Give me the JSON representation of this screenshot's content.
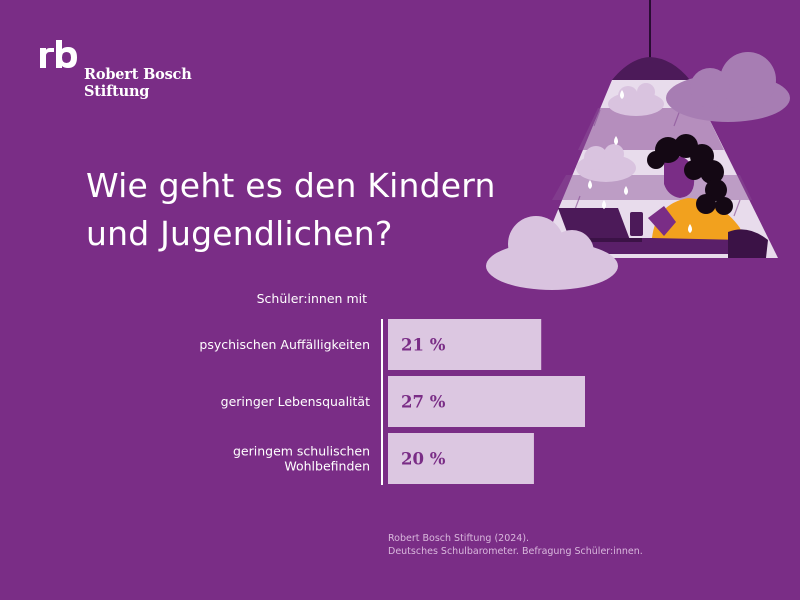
{
  "brand": {
    "name_line1": "Robert Bosch",
    "name_line2": "Stiftung"
  },
  "headline": {
    "line1": "Wie geht es den Kindern",
    "line2": "und Jugendlichen?"
  },
  "colors": {
    "background": "#7a2d86",
    "bar_fill": "#dcc7e1",
    "bar_text": "#7a2d86",
    "cloud": "#d9c3df",
    "cloud_dark": "#a77db3",
    "person_shirt": "#f2a11e"
  },
  "chart_data": {
    "type": "bar",
    "orientation": "horizontal",
    "title": "Schüler:innen mit",
    "categories": [
      [
        "psychischen Auffälligkeiten"
      ],
      [
        "geringer Lebensqualität"
      ],
      [
        "geringem schulischen",
        "Wohlbefinden"
      ]
    ],
    "values": [
      21,
      27,
      20
    ],
    "value_labels": [
      "21 %",
      "27 %",
      "20 %"
    ],
    "unit": "%",
    "xlim": [
      0,
      27
    ]
  },
  "source": {
    "line1": "Robert Bosch Stiftung (2024).",
    "line2": "Deutsches Schulbarometer. Befragung Schüler:innen."
  }
}
